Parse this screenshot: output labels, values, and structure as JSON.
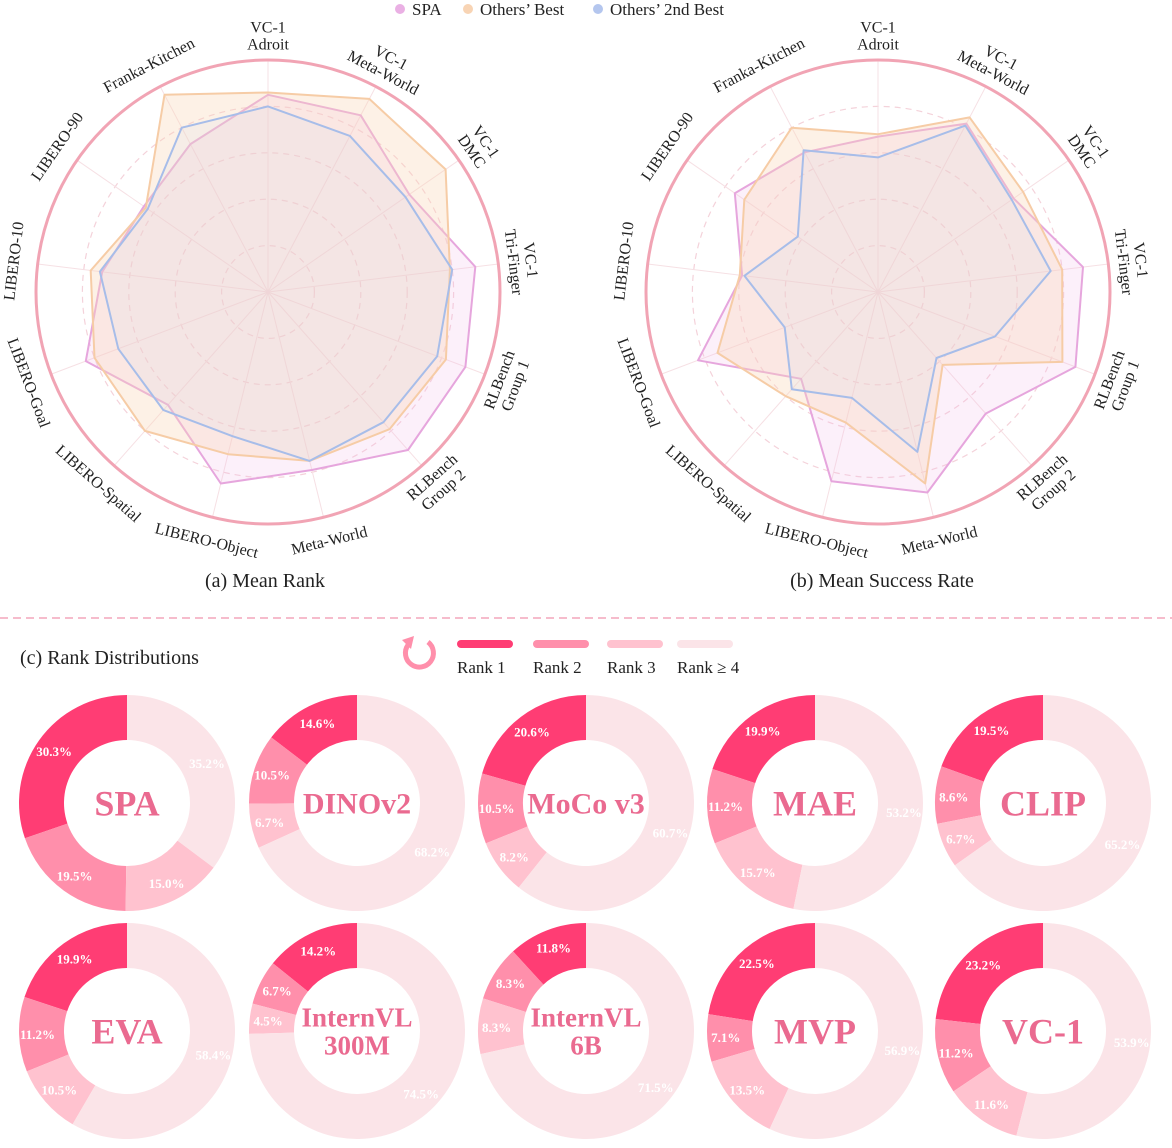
{
  "legend": {
    "items": [
      {
        "label": "SPA",
        "color": "#eab0e4"
      },
      {
        "label": "Others’ Best",
        "color": "#f8d4b4"
      },
      {
        "label": "Others’ 2nd Best",
        "color": "#b4c6ee"
      }
    ]
  },
  "rank_legend": {
    "items": [
      {
        "label": "Rank 1",
        "color": "#ff3d74"
      },
      {
        "label": "Rank 2",
        "color": "#ff8fab"
      },
      {
        "label": "Rank 3",
        "color": "#ffc2cf"
      },
      {
        "label": "Rank ≥ 4",
        "color": "#fbe4e8"
      }
    ],
    "icon": "circular-arrow-icon"
  },
  "chart_data": [
    {
      "type": "radar",
      "title": "(a) Mean Rank",
      "axes": [
        "VC-1|Adroit",
        "VC-1|Meta-World",
        "VC-1|DMC",
        "VC-1|Tri-Finger",
        "RLBench|Group 1",
        "RLBench|Group 2",
        "Meta-World",
        "LIBERO-Object",
        "LIBERO-Spatial",
        "LIBERO-Goal",
        "LIBERO-10",
        "LIBERO-90",
        "Franka-Kitchen"
      ],
      "rlim": [
        0,
        1
      ],
      "grid": true,
      "series": [
        {
          "name": "SPA",
          "values": [
            0.85,
            0.86,
            0.74,
            0.9,
            0.91,
            0.91,
            0.79,
            0.85,
            0.65,
            0.84,
            0.72,
            0.65,
            0.72
          ]
        },
        {
          "name": "Others’ Best",
          "values": [
            0.86,
            0.94,
            0.93,
            0.79,
            0.82,
            0.79,
            0.75,
            0.72,
            0.8,
            0.8,
            0.77,
            0.64,
            0.96
          ]
        },
        {
          "name": "Others’ 2nd Best",
          "values": [
            0.8,
            0.76,
            0.72,
            0.8,
            0.78,
            0.75,
            0.75,
            0.64,
            0.68,
            0.69,
            0.73,
            0.63,
            0.8
          ]
        }
      ]
    },
    {
      "type": "radar",
      "title": "(b) Mean Success Rate",
      "axes": [
        "VC-1|Adroit",
        "VC-1|Meta-World",
        "VC-1|DMC",
        "VC-1|Tri-Finger",
        "RLBench|Group 1",
        "RLBench|Group 2",
        "Meta-World",
        "LIBERO-Object",
        "LIBERO-Spatial",
        "LIBERO-Goal",
        "LIBERO-10",
        "LIBERO-90",
        "Franka-Kitchen"
      ],
      "rlim": [
        0,
        1
      ],
      "grid": true,
      "series": [
        {
          "name": "SPA",
          "values": [
            0.67,
            0.82,
            0.71,
            0.89,
            0.91,
            0.7,
            0.89,
            0.84,
            0.5,
            0.83,
            0.59,
            0.75,
            0.68
          ]
        },
        {
          "name": "Others’ Best",
          "values": [
            0.68,
            0.85,
            0.76,
            0.8,
            0.85,
            0.42,
            0.85,
            0.58,
            0.6,
            0.74,
            0.6,
            0.7,
            0.8
          ]
        },
        {
          "name": "Others’ 2nd Best",
          "values": [
            0.58,
            0.81,
            0.7,
            0.75,
            0.54,
            0.38,
            0.71,
            0.47,
            0.56,
            0.43,
            0.58,
            0.42,
            0.69
          ]
        }
      ]
    },
    {
      "type": "pie",
      "title": "(c) Rank Distributions",
      "categories": [
        "Rank 1",
        "Rank 2",
        "Rank 3",
        "Rank ≥ 4"
      ],
      "donuts": [
        {
          "name": "SPA",
          "values": [
            30.3,
            19.5,
            15.0,
            35.2
          ]
        },
        {
          "name": "DINOv2",
          "values": [
            14.6,
            10.5,
            6.7,
            68.2
          ]
        },
        {
          "name": "MoCo v3",
          "values": [
            20.6,
            10.5,
            8.2,
            60.7
          ]
        },
        {
          "name": "MAE",
          "values": [
            19.9,
            11.2,
            15.7,
            53.2
          ]
        },
        {
          "name": "CLIP",
          "values": [
            19.5,
            8.6,
            6.7,
            65.2
          ]
        },
        {
          "name": "EVA",
          "values": [
            19.9,
            11.2,
            10.5,
            58.4
          ]
        },
        {
          "name": "InternVL|300M",
          "values": [
            14.2,
            6.7,
            4.5,
            74.5
          ]
        },
        {
          "name": "InternVL|6B",
          "values": [
            11.8,
            8.3,
            8.3,
            71.5
          ]
        },
        {
          "name": "MVP",
          "values": [
            22.5,
            7.1,
            13.5,
            56.9
          ]
        },
        {
          "name": "VC-1",
          "values": [
            23.2,
            11.2,
            11.6,
            53.9
          ]
        }
      ]
    }
  ]
}
